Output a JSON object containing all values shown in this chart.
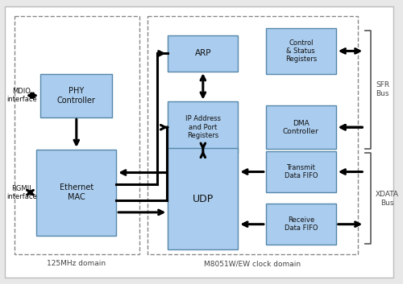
{
  "bg_color": "#e8e8e8",
  "box_fill": "#aaccee",
  "box_edge": "#5588aa",
  "outer_bg": "#ffffff",
  "text_color": "#111111",
  "arrow_color": "#000000",
  "domain1_label": "125MHz domain",
  "domain2_label": "M8051W/EW clock domain",
  "sfr_label": "SFR\nBus",
  "xdata_label": "XDATA\nBus",
  "mdio_label": "MDIO\ninterface",
  "rgmii_label": "RGMII\ninterface"
}
